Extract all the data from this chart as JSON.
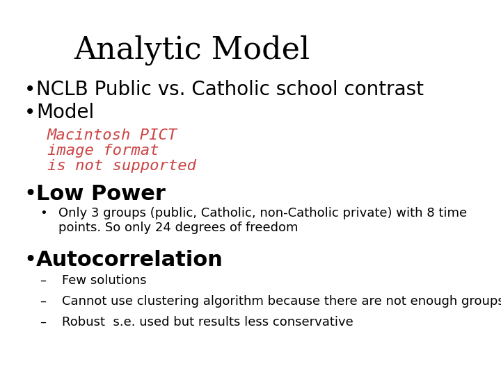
{
  "title": "Analytic Model",
  "title_fontsize": 32,
  "title_font": "DejaVu Serif",
  "background_color": "#ffffff",
  "text_color": "#000000",
  "bullet_color": "#000000",
  "placeholder_color": "#cc4444",
  "placeholder_text": [
    "Macintosh PICT",
    "image format",
    "is not supported"
  ],
  "bullets": [
    {
      "level": 1,
      "text": "NCLB Public vs. Catholic school contrast",
      "fontsize": 20,
      "bold": false
    },
    {
      "level": 1,
      "text": "Model",
      "fontsize": 20,
      "bold": false
    },
    {
      "level": 1,
      "text": "Low Power",
      "fontsize": 20,
      "bold": true
    },
    {
      "level": 2,
      "text": "Only 3 groups (public, Catholic, non-Catholic private) with 8 time\npoints. So only 24 degrees of freedom",
      "fontsize": 13,
      "bold": false
    },
    {
      "level": 1,
      "text": "Autocorrelation",
      "fontsize": 22,
      "bold": true
    },
    {
      "level": 3,
      "text": "Few solutions",
      "fontsize": 13,
      "bold": false
    },
    {
      "level": 3,
      "text": "Cannot use clustering algorithm because there are not enough groups",
      "fontsize": 13,
      "bold": false
    },
    {
      "level": 3,
      "text": "Robust  s.e. used but results less conservative",
      "fontsize": 13,
      "bold": false
    }
  ]
}
